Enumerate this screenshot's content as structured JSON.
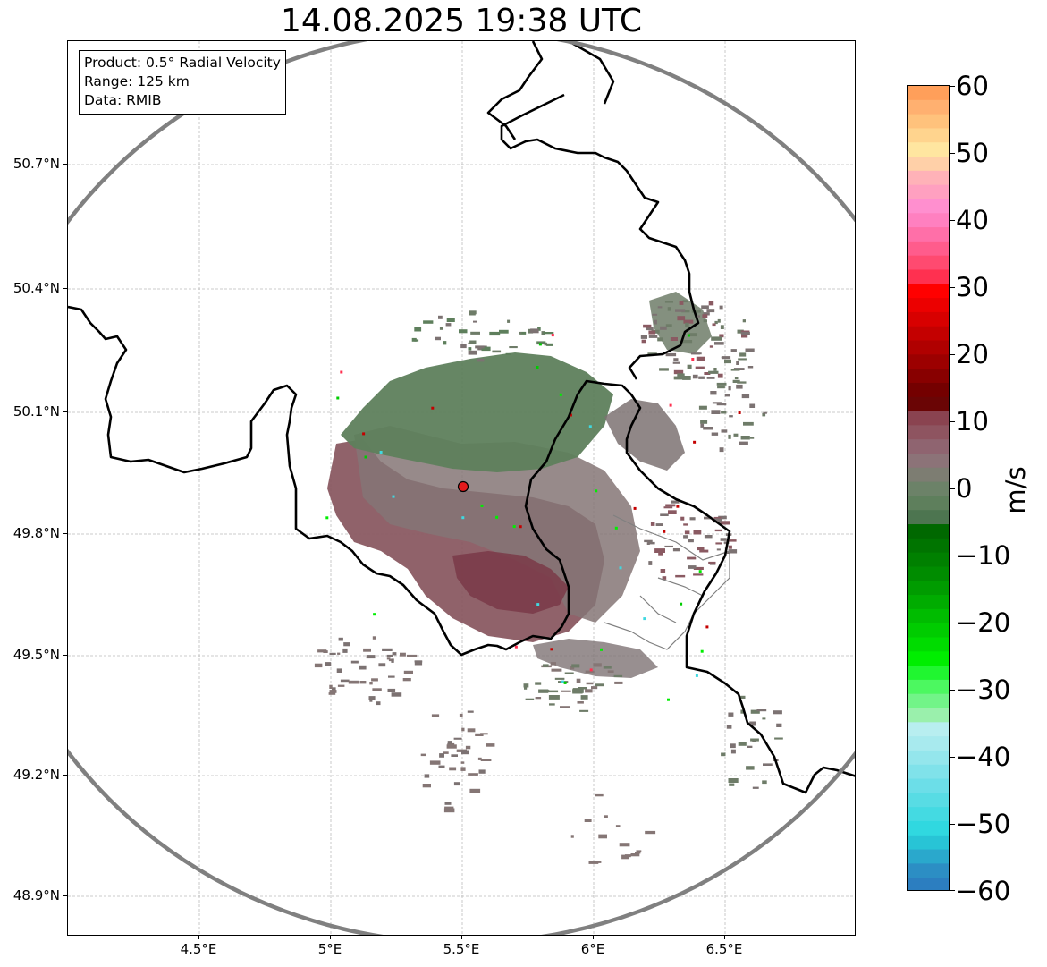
{
  "title": "14.08.2025 19:38 UTC",
  "info_box": {
    "line1": "Product: 0.5° Radial Velocity",
    "line2": "Range: 125 km",
    "line3": "Data: RMIB"
  },
  "lat_ticks": [
    "50.7°N",
    "50.4°N",
    "50.1°N",
    "49.8°N",
    "49.5°N",
    "49.2°N",
    "48.9°N"
  ],
  "lon_ticks": [
    "4.5°E",
    "5°E",
    "5.5°E",
    "6°E",
    "6.5°E"
  ],
  "colorbar": {
    "ticks": [
      "60",
      "50",
      "40",
      "30",
      "20",
      "10",
      "0",
      "−10",
      "−20",
      "−30",
      "−40",
      "−50",
      "−60"
    ],
    "unit": "m/s",
    "colors_top_to_bottom": [
      "#ff9f5a",
      "#ffb070",
      "#ffc27c",
      "#ffd48e",
      "#ffe6a0",
      "#ffd0a8",
      "#ffb2b8",
      "#ffa0c0",
      "#ff8fcf",
      "#ff80c0",
      "#ff6fa8",
      "#ff5c8c",
      "#ff4a70",
      "#ff3050",
      "#ff0000",
      "#ec0000",
      "#d80000",
      "#c40000",
      "#b00000",
      "#9c0000",
      "#880000",
      "#740000",
      "#6a0505",
      "#8a4350",
      "#8e5460",
      "#8f6470",
      "#8c7378",
      "#7d7d72",
      "#6c8268",
      "#5e7f5c",
      "#4d7550",
      "#006800",
      "#007400",
      "#008000",
      "#008c00",
      "#009c00",
      "#00ac00",
      "#00bc00",
      "#00cc00",
      "#00dc00",
      "#00ee00",
      "#20f630",
      "#4cf860",
      "#72f488",
      "#9af0ac",
      "#b8eef0",
      "#a8eaee",
      "#94e6ec",
      "#80e2ea",
      "#6cdee8",
      "#58dce4",
      "#44dae2",
      "#30d8e0",
      "#28c4d6",
      "#2aa8cc",
      "#2c8ec4",
      "#2c7ec0"
    ]
  },
  "map": {
    "range_circle_color": "#808080",
    "radar_site_color": "#e31a1c",
    "border_color": "#000000",
    "inner_border_color": "#808080"
  }
}
